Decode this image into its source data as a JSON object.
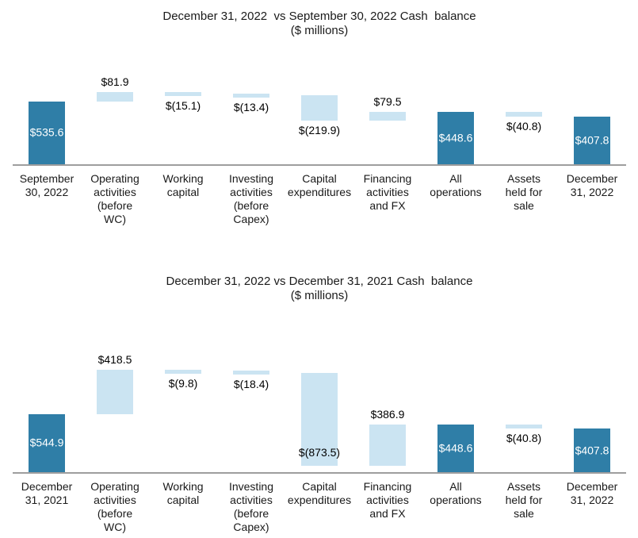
{
  "colors": {
    "total_bar": "#2F7EA7",
    "change_bar": "#CBE4F2",
    "axis_line": "#9E9E9E",
    "total_label_text": "#FFFFFF",
    "change_label_text": "#000000"
  },
  "chart_data": [
    {
      "type": "bar",
      "subtype": "waterfall",
      "title": "December 31, 2022  vs September 30, 2022 Cash  balance",
      "subtitle": "($ millions)",
      "legend": "none",
      "grid": "off",
      "y_axis": "hidden",
      "ylim": [
        0,
        650
      ],
      "categories": [
        "September 30, 2022",
        "Operating activities (before WC)",
        "Working capital",
        "Investing activities (before Capex)",
        "Capital expenditures",
        "Financing activities and FX",
        "All operations",
        "Assets held for sale",
        "December 31, 2022"
      ],
      "category_lines": [
        [
          "September",
          "30, 2022"
        ],
        [
          "Operating",
          "activities",
          "(before",
          "WC)"
        ],
        [
          "Working",
          "capital"
        ],
        [
          "Investing",
          "activities",
          "(before",
          "Capex)"
        ],
        [
          "Capital",
          "expenditures"
        ],
        [
          "Financing",
          "activities",
          "and FX"
        ],
        [
          "All",
          "operations"
        ],
        [
          "Assets",
          "held for",
          "sale"
        ],
        [
          "December",
          "31, 2022"
        ]
      ],
      "bars": [
        {
          "label": "$535.6",
          "value": 535.6,
          "role": "total"
        },
        {
          "label": "$81.9",
          "value": 81.9,
          "role": "change"
        },
        {
          "label": "$(15.1)",
          "value": -15.1,
          "role": "change"
        },
        {
          "label": "$(13.4)",
          "value": -13.4,
          "role": "change"
        },
        {
          "label": "$(219.9)",
          "value": -219.9,
          "role": "change"
        },
        {
          "label": "$79.5",
          "value": 79.5,
          "role": "change"
        },
        {
          "label": "$448.6",
          "value": 448.6,
          "role": "total"
        },
        {
          "label": "$(40.8)",
          "value": -40.8,
          "role": "change"
        },
        {
          "label": "$407.8",
          "value": 407.8,
          "role": "total"
        }
      ]
    },
    {
      "type": "bar",
      "subtype": "waterfall",
      "title": "December 31, 2022 vs December 31, 2021 Cash  balance",
      "subtitle": "($ millions)",
      "legend": "none",
      "grid": "off",
      "y_axis": "hidden",
      "ylim": [
        0,
        1000
      ],
      "categories": [
        "December 31, 2021",
        "Operating activities (before WC)",
        "Working capital",
        "Investing activities (before Capex)",
        "Capital expenditures",
        "Financing activities and FX",
        "All operations",
        "Assets held for sale",
        "December 31, 2022"
      ],
      "category_lines": [
        [
          "December",
          "31, 2021"
        ],
        [
          "Operating",
          "activities",
          "(before",
          "WC)"
        ],
        [
          "Working",
          "capital"
        ],
        [
          "Investing",
          "activities",
          "(before",
          "Capex)"
        ],
        [
          "Capital",
          "expenditures"
        ],
        [
          "Financing",
          "activities",
          "and FX"
        ],
        [
          "All",
          "operations"
        ],
        [
          "Assets",
          "held for",
          "sale"
        ],
        [
          "December",
          "31, 2022"
        ]
      ],
      "bars": [
        {
          "label": "$544.9",
          "value": 544.9,
          "role": "total"
        },
        {
          "label": "$418.5",
          "value": 418.5,
          "role": "change"
        },
        {
          "label": "$(9.8)",
          "value": -9.8,
          "role": "change"
        },
        {
          "label": "$(18.4)",
          "value": -18.4,
          "role": "change"
        },
        {
          "label": "$(873.5)",
          "value": -873.5,
          "role": "change"
        },
        {
          "label": "$386.9",
          "value": 386.9,
          "role": "change"
        },
        {
          "label": "$448.6",
          "value": 448.6,
          "role": "total"
        },
        {
          "label": "$(40.8)",
          "value": -40.8,
          "role": "change"
        },
        {
          "label": "$407.8",
          "value": 407.8,
          "role": "total"
        }
      ]
    }
  ]
}
